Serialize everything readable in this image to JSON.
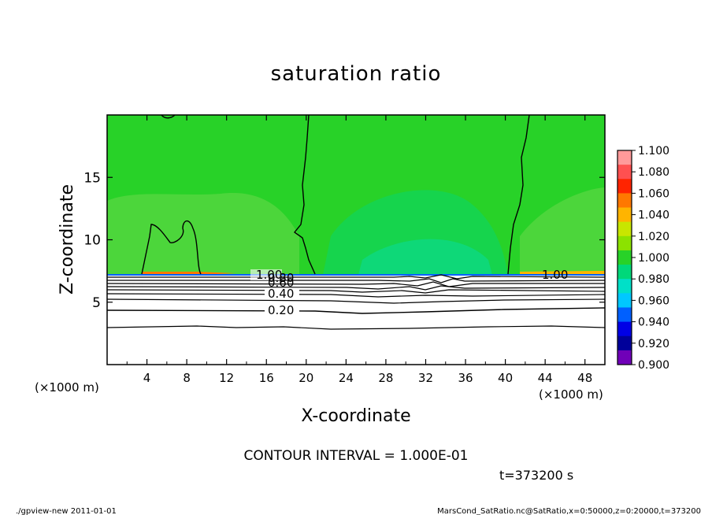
{
  "chart_data": {
    "type": "heatmap",
    "title": "saturation ratio",
    "xlabel": "X-coordinate",
    "ylabel": "Z-coordinate",
    "x_unit": "(×1000 m)",
    "y_unit": "(×1000 m)",
    "xlim": [
      0,
      50
    ],
    "ylim": [
      0,
      20
    ],
    "x_ticks": [
      4,
      8,
      12,
      16,
      20,
      24,
      28,
      32,
      36,
      40,
      44,
      48
    ],
    "y_ticks": [
      5,
      10,
      15
    ],
    "contour_labels": [
      "1.00",
      "0.80",
      "0.60",
      "0.40",
      "0.20",
      "1.00"
    ],
    "contour_interval_text": "CONTOUR INTERVAL = 1.000E-01",
    "time_text": "t=373200 s",
    "colorbar": {
      "levels": [
        "1.100",
        "1.080",
        "1.060",
        "1.040",
        "1.020",
        "1.000",
        "0.980",
        "0.960",
        "0.940",
        "0.920",
        "0.900"
      ],
      "colors": [
        "#ff9a9a",
        "#ff5050",
        "#ff2400",
        "#ff7800",
        "#ffb400",
        "#c8e600",
        "#8ce200",
        "#28d228",
        "#00d87a",
        "#00e0c8",
        "#00c8ff",
        "#0060ff",
        "#0000e6",
        "#00009a",
        "#7000b8"
      ]
    },
    "surface_height_z": 7.3
  },
  "footer": {
    "left": "./gpview-new  2011-01-01",
    "right": "MarsCond_SatRatio.nc@SatRatio,x=0:50000,z=0:20000,t=373200"
  }
}
